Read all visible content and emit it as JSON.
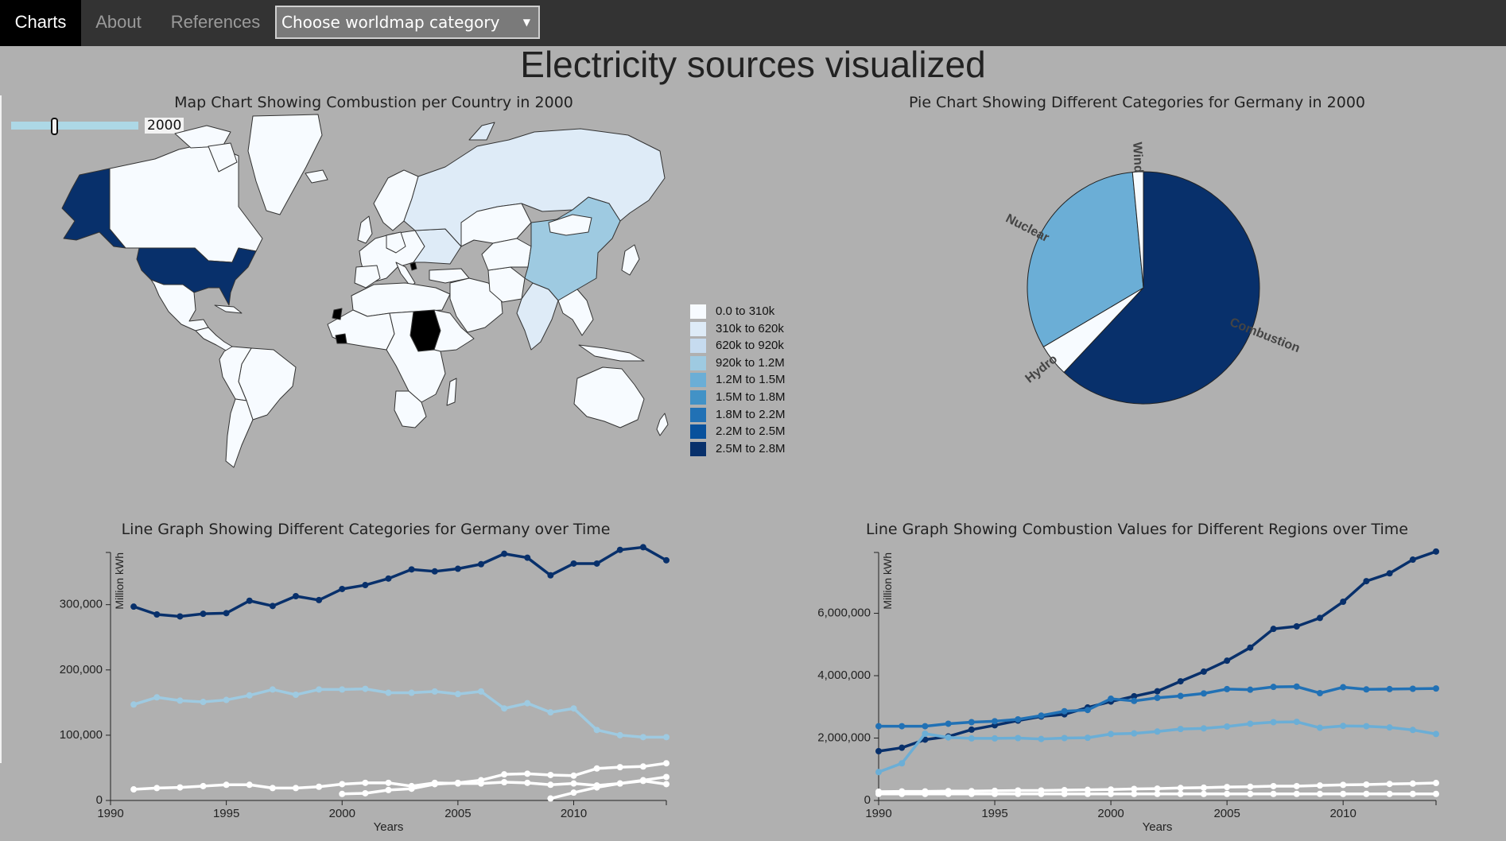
{
  "nav": {
    "items": [
      {
        "label": "Charts"
      },
      {
        "label": "About"
      },
      {
        "label": "References"
      }
    ],
    "select_value": "Choose worldmap category"
  },
  "page_title": "Electricity sources visualized",
  "map": {
    "title": "Map Chart Showing Combustion per Country in 2000",
    "slider_year": "2000",
    "slider_fraction": 0.25,
    "legend": [
      {
        "label": "0.0 to 310k",
        "color": "#f7fbff"
      },
      {
        "label": "310k to 620k",
        "color": "#deebf7"
      },
      {
        "label": "620k to 920k",
        "color": "#c6dbef"
      },
      {
        "label": "920k to 1.2M",
        "color": "#9ecae1"
      },
      {
        "label": "1.2M to 1.5M",
        "color": "#6baed6"
      },
      {
        "label": "1.5M to 1.8M",
        "color": "#4292c6"
      },
      {
        "label": "1.8M to 2.2M",
        "color": "#2171b5"
      },
      {
        "label": "2.2M to 2.5M",
        "color": "#08519c"
      },
      {
        "label": "2.5M to 2.8M",
        "color": "#08306b"
      }
    ]
  },
  "chart_data": [
    {
      "type": "pie",
      "title": "Pie Chart Showing Different Categories for Germany in 2000",
      "labels": [
        "Combustion",
        "Hydro",
        "Nuclear",
        "Wind"
      ],
      "values": [
        62,
        4.5,
        32,
        1.5
      ],
      "colors": [
        "#08306b",
        "#f7fbff",
        "#6baed6",
        "#f7fbff"
      ]
    },
    {
      "type": "line",
      "title": "Line Graph Showing Different Categories for Germany over Time",
      "xlabel": "Years",
      "ylabel": "Million kWh",
      "xlim": [
        1990,
        2014
      ],
      "ylim": [
        0,
        380000
      ],
      "x_ticks": [
        "1990",
        "1995",
        "2000",
        "2005",
        "2010"
      ],
      "y_ticks": [
        "0",
        "100,000",
        "200,000",
        "300,000"
      ],
      "x": [
        1991,
        1992,
        1993,
        1994,
        1995,
        1996,
        1997,
        1998,
        1999,
        2000,
        2001,
        2002,
        2003,
        2004,
        2005,
        2006,
        2007,
        2008,
        2009,
        2010,
        2011,
        2012,
        2013,
        2014
      ],
      "series": [
        {
          "color": "#08306b",
          "values": [
            297000,
            285000,
            282000,
            286000,
            287000,
            306000,
            298000,
            313000,
            307000,
            324000,
            330000,
            340000,
            354000,
            351000,
            355000,
            362000,
            378000,
            372000,
            345000,
            363000,
            363000,
            384000,
            388000,
            368000
          ]
        },
        {
          "color": "#9ecae1",
          "values": [
            147000,
            158000,
            153000,
            151000,
            154000,
            161000,
            170000,
            162000,
            170000,
            170000,
            171000,
            165000,
            165000,
            167000,
            163000,
            167000,
            141000,
            149000,
            135000,
            141000,
            108000,
            100000,
            97000,
            97000
          ]
        },
        {
          "color": "#ffffff",
          "values": [
            17000,
            19000,
            20000,
            22000,
            24000,
            24000,
            19000,
            19000,
            21000,
            25000,
            27000,
            27000,
            22000,
            27000,
            26000,
            26000,
            28000,
            27000,
            24000,
            26000,
            23000,
            26000,
            30000,
            25000
          ]
        },
        {
          "color": "#ffffff",
          "values": [
            null,
            null,
            null,
            null,
            null,
            null,
            null,
            null,
            null,
            10000,
            11000,
            16000,
            18000,
            25000,
            27000,
            31000,
            40000,
            41000,
            39000,
            38000,
            49000,
            51000,
            52000,
            57000
          ]
        },
        {
          "color": "#ffffff",
          "values": [
            null,
            null,
            null,
            null,
            null,
            null,
            null,
            null,
            null,
            null,
            null,
            null,
            null,
            null,
            null,
            null,
            null,
            null,
            3000,
            12000,
            20000,
            26000,
            31000,
            36000
          ]
        }
      ]
    },
    {
      "type": "line",
      "title": "Line Graph Showing Combustion Values for Different Regions over Time",
      "xlabel": "Years",
      "ylabel": "Million kWh",
      "xlim": [
        1990,
        2014
      ],
      "ylim": [
        0,
        7950000
      ],
      "x_ticks": [
        "1990",
        "1995",
        "2000",
        "2005",
        "2010"
      ],
      "y_ticks": [
        "0",
        "2,000,000",
        "4,000,000",
        "6,000,000"
      ],
      "x": [
        1990,
        1991,
        1992,
        1993,
        1994,
        1995,
        1996,
        1997,
        1998,
        1999,
        2000,
        2001,
        2002,
        2003,
        2004,
        2005,
        2006,
        2007,
        2008,
        2009,
        2010,
        2011,
        2012,
        2013,
        2014
      ],
      "series": [
        {
          "color": "#08306b",
          "values": [
            1580000,
            1690000,
            1950000,
            2050000,
            2270000,
            2410000,
            2560000,
            2690000,
            2760000,
            2980000,
            3170000,
            3340000,
            3500000,
            3820000,
            4130000,
            4480000,
            4900000,
            5500000,
            5580000,
            5850000,
            6370000,
            7030000,
            7280000,
            7720000,
            7980000
          ]
        },
        {
          "color": "#2171b5",
          "values": [
            2380000,
            2380000,
            2380000,
            2460000,
            2510000,
            2540000,
            2600000,
            2720000,
            2860000,
            2900000,
            3260000,
            3190000,
            3290000,
            3350000,
            3430000,
            3570000,
            3550000,
            3640000,
            3650000,
            3440000,
            3630000,
            3560000,
            3570000,
            3580000,
            3590000
          ]
        },
        {
          "color": "#6baed6",
          "values": [
            910000,
            1190000,
            2140000,
            2020000,
            1990000,
            1990000,
            2000000,
            1970000,
            2000000,
            2010000,
            2130000,
            2150000,
            2210000,
            2290000,
            2310000,
            2370000,
            2460000,
            2510000,
            2520000,
            2330000,
            2390000,
            2380000,
            2340000,
            2260000,
            2130000
          ]
        },
        {
          "color": "#ffffff",
          "values": [
            280000,
            290000,
            290000,
            300000,
            300000,
            310000,
            320000,
            320000,
            330000,
            340000,
            350000,
            370000,
            380000,
            400000,
            410000,
            430000,
            440000,
            460000,
            460000,
            480000,
            500000,
            510000,
            530000,
            540000,
            560000
          ]
        },
        {
          "color": "#ffffff",
          "values": [
            210000,
            210000,
            210000,
            210000,
            210000,
            210000,
            210000,
            210000,
            210000,
            210000,
            210000,
            210000,
            210000,
            210000,
            210000,
            210000,
            210000,
            210000,
            210000,
            210000,
            210000,
            210000,
            210000,
            210000,
            210000
          ]
        }
      ]
    }
  ]
}
